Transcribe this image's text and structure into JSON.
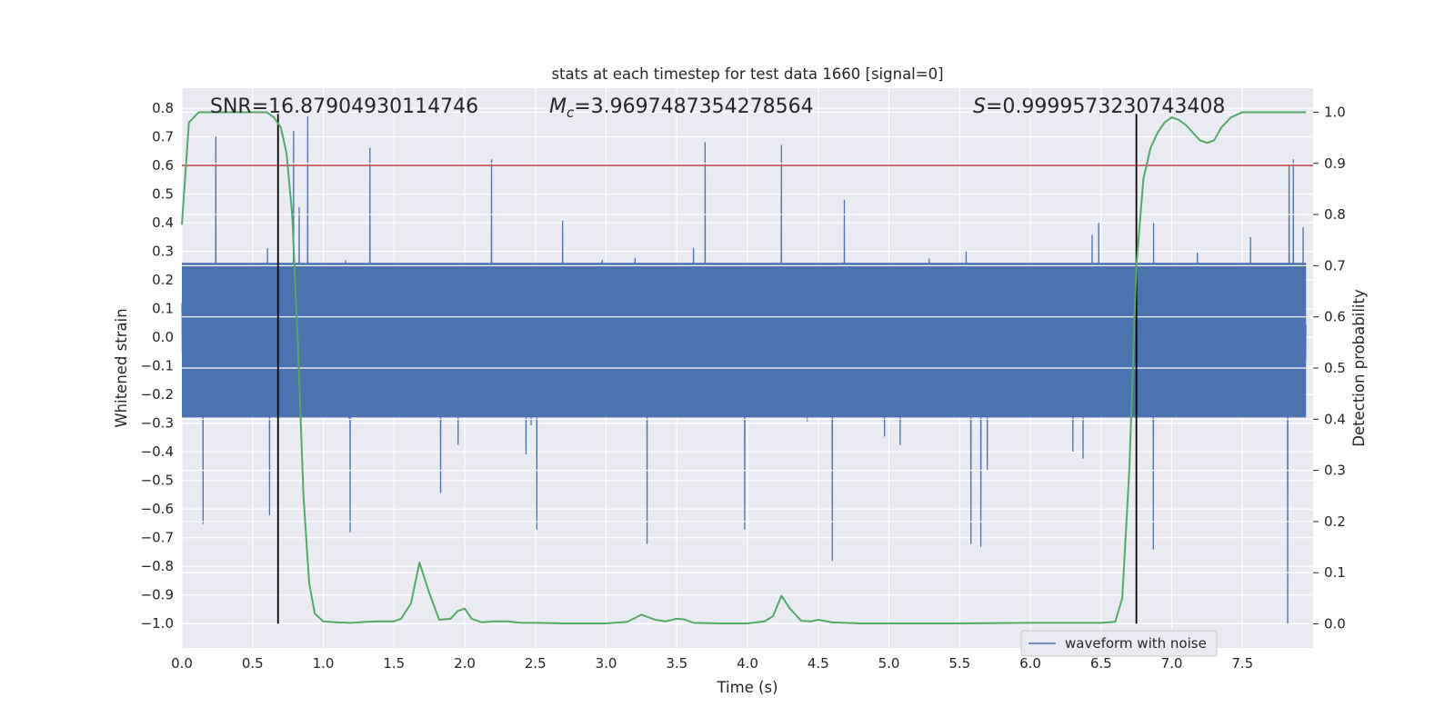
{
  "chart_data": {
    "type": "line",
    "title": "stats at each timestep for test data 1660 [signal=0]",
    "xlabel": "Time (s)",
    "ylabel": "Whitened strain",
    "y2label": "Detection probability",
    "xlim": [
      0,
      8
    ],
    "ylim": [
      -1.085,
      0.87
    ],
    "y2lim": [
      -0.047,
      1.047
    ],
    "xticks": [
      0.0,
      0.5,
      1.0,
      1.5,
      2.0,
      2.5,
      3.0,
      3.5,
      4.0,
      4.5,
      5.0,
      5.5,
      6.0,
      6.5,
      7.0,
      7.5
    ],
    "xtick_labels": [
      "0.0",
      "0.5",
      "1.0",
      "1.5",
      "2.0",
      "2.5",
      "3.0",
      "3.5",
      "4.0",
      "4.5",
      "5.0",
      "5.5",
      "6.0",
      "6.5",
      "7.0",
      "7.5"
    ],
    "yticks": [
      0.8,
      0.7,
      0.6,
      0.5,
      0.4,
      0.3,
      0.2,
      0.1,
      0.0,
      -0.1,
      -0.2,
      -0.3,
      -0.4,
      -0.5,
      -0.6,
      -0.7,
      -0.8,
      -0.9,
      -1.0
    ],
    "ytick_labels": [
      "0.8",
      "0.7",
      "0.6",
      "0.5",
      "0.4",
      "0.3",
      "0.2",
      "0.1",
      "0.0",
      "−0.1",
      "−0.2",
      "−0.3",
      "−0.4",
      "−0.5",
      "−0.6",
      "−0.7",
      "−0.8",
      "−0.9",
      "−1.0"
    ],
    "y2ticks": [
      1.0,
      0.9,
      0.8,
      0.7,
      0.6,
      0.5,
      0.4,
      0.3,
      0.2,
      0.1,
      0.0
    ],
    "y2tick_labels": [
      "1.0",
      "0.9",
      "0.8",
      "0.7",
      "0.6",
      "0.5",
      "0.4",
      "0.3",
      "0.2",
      "0.1",
      "0.0"
    ],
    "grid": true,
    "legend": {
      "entries": [
        "waveform with noise"
      ],
      "placement": "lower-right"
    },
    "annotations": {
      "snr": "SNR=16.87904930114746",
      "mc_symbol": "M",
      "mc_sub": "c",
      "mc_value": "=3.9697487354278564",
      "s_symbol": "S",
      "s_value": "=0.9999573230743408"
    },
    "threshold_line": {
      "y": 0.6,
      "color": "#c44e52"
    },
    "vertical_lines": [
      {
        "x": 0.68,
        "y_from": -1.0,
        "y_to": 0.78
      },
      {
        "x": 6.75,
        "y_from": -1.0,
        "y_to": 0.78
      }
    ],
    "series": [
      {
        "name": "waveform with noise",
        "color": "#4c72b0",
        "kind": "noise",
        "points": 6000,
        "envelope_pos": 0.26,
        "envelope_neg": -0.28,
        "spike_max": 0.77,
        "spike_min": -1.0,
        "notable_spikes": [
          {
            "x": 0.89,
            "y": 0.77
          },
          {
            "x": 0.24,
            "y": 0.7
          },
          {
            "x": 0.79,
            "y": 0.72
          },
          {
            "x": 3.7,
            "y": 0.68
          },
          {
            "x": 4.24,
            "y": 0.67
          },
          {
            "x": 1.33,
            "y": 0.66
          },
          {
            "x": 2.19,
            "y": 0.62
          },
          {
            "x": 7.86,
            "y": 0.62
          },
          {
            "x": 7.83,
            "y": 0.6
          },
          {
            "x": 0.15,
            "y": -0.65
          },
          {
            "x": 1.19,
            "y": -0.68
          },
          {
            "x": 3.29,
            "y": -0.72
          },
          {
            "x": 4.6,
            "y": -0.78
          },
          {
            "x": 5.58,
            "y": -0.72
          },
          {
            "x": 5.65,
            "y": -0.73
          },
          {
            "x": 6.87,
            "y": -0.74
          },
          {
            "x": 3.98,
            "y": -0.67
          },
          {
            "x": 2.51,
            "y": -0.67
          },
          {
            "x": 7.82,
            "y": -1.0
          },
          {
            "x": 0.62,
            "y": -0.62
          }
        ]
      },
      {
        "name": "detection probability",
        "color": "#55a868",
        "axis": "right",
        "x": [
          0.0,
          0.05,
          0.12,
          0.2,
          0.3,
          0.4,
          0.5,
          0.6,
          0.65,
          0.7,
          0.74,
          0.78,
          0.82,
          0.86,
          0.9,
          0.94,
          1.0,
          1.1,
          1.2,
          1.3,
          1.4,
          1.5,
          1.55,
          1.62,
          1.68,
          1.75,
          1.82,
          1.9,
          1.95,
          2.0,
          2.05,
          2.12,
          2.2,
          2.3,
          2.4,
          2.5,
          2.7,
          3.0,
          3.15,
          3.25,
          3.35,
          3.42,
          3.5,
          3.55,
          3.62,
          3.8,
          4.0,
          4.12,
          4.18,
          4.24,
          4.3,
          4.38,
          4.45,
          4.5,
          4.6,
          4.8,
          5.0,
          5.5,
          6.0,
          6.1,
          6.5,
          6.6,
          6.65,
          6.7,
          6.75,
          6.8,
          6.85,
          6.9,
          6.95,
          7.0,
          7.05,
          7.1,
          7.15,
          7.2,
          7.25,
          7.3,
          7.35,
          7.42,
          7.5,
          7.6,
          7.8,
          7.95
        ],
        "values": [
          0.78,
          0.98,
          1.0,
          1.0,
          1.0,
          1.0,
          1.0,
          1.0,
          0.99,
          0.97,
          0.92,
          0.8,
          0.55,
          0.25,
          0.08,
          0.02,
          0.005,
          0.003,
          0.002,
          0.004,
          0.005,
          0.005,
          0.01,
          0.04,
          0.12,
          0.06,
          0.008,
          0.01,
          0.025,
          0.03,
          0.01,
          0.003,
          0.005,
          0.005,
          0.002,
          0.002,
          0.001,
          0.001,
          0.004,
          0.018,
          0.008,
          0.005,
          0.01,
          0.009,
          0.002,
          0.001,
          0.001,
          0.005,
          0.015,
          0.055,
          0.03,
          0.006,
          0.005,
          0.008,
          0.003,
          0.001,
          0.001,
          0.001,
          0.002,
          0.002,
          0.002,
          0.004,
          0.05,
          0.3,
          0.7,
          0.87,
          0.93,
          0.96,
          0.98,
          0.99,
          0.985,
          0.975,
          0.96,
          0.945,
          0.94,
          0.945,
          0.97,
          0.99,
          1.0,
          1.0,
          1.0,
          1.0
        ]
      }
    ]
  }
}
